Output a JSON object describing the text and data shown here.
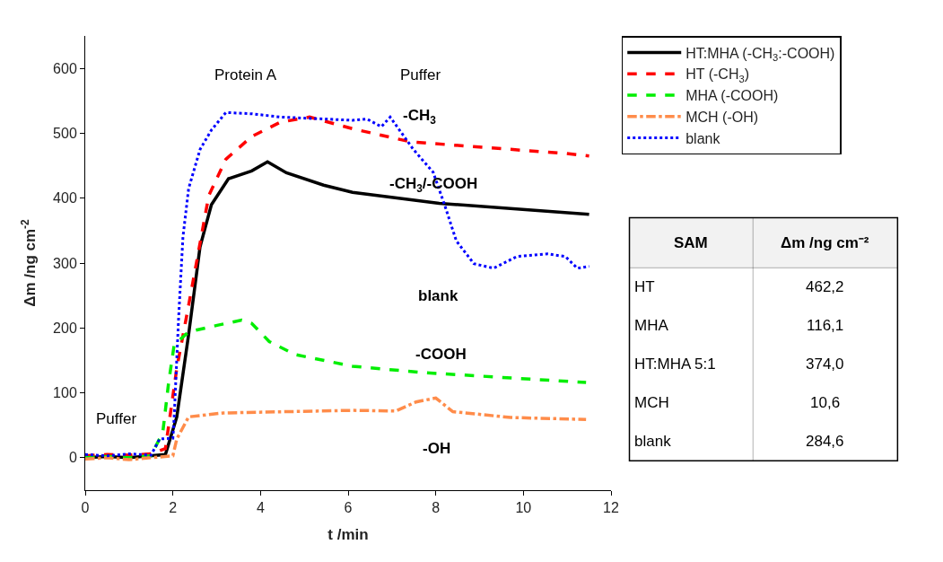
{
  "chart_data": {
    "type": "line",
    "xlabel": "t /min",
    "ylabel": "Δm /ng cm$^{-2}$",
    "xlim": [
      0,
      12
    ],
    "xticks": [
      0,
      2,
      4,
      6,
      8,
      10,
      12
    ],
    "ylim": [
      -50,
      650
    ],
    "yticks": [
      0,
      100,
      200,
      300,
      400,
      500,
      600
    ],
    "grid": false,
    "legend": "top right",
    "marker": "none",
    "series": [
      {
        "name": "HT:MHA (-CH$_{3}$:-COOH)",
        "color": "#000000",
        "line_style": "solid",
        "x": [
          0,
          0.5,
          1.0,
          1.5,
          1.83,
          2.09,
          2.36,
          2.62,
          2.88,
          3.27,
          3.8,
          4.16,
          4.59,
          5.44,
          5.77,
          6.1,
          8.08,
          11.03,
          11.5
        ],
        "values": [
          0,
          2,
          0,
          3,
          5,
          63,
          190,
          325,
          390,
          430,
          442,
          456,
          439,
          420,
          415,
          409,
          392,
          377,
          375
        ]
      },
      {
        "name": "HT (-CH$_{3}$)",
        "color": "#ff0000",
        "line_style": "dashed",
        "x": [
          0,
          0.5,
          1.0,
          1.5,
          1.83,
          2.09,
          2.36,
          2.62,
          2.82,
          3.21,
          3.8,
          4.45,
          5.12,
          6.1,
          6.43,
          7.41,
          8.73,
          10.96,
          11.5
        ],
        "values": [
          3,
          5,
          4,
          6,
          14,
          138,
          235,
          334,
          404,
          460,
          495,
          517,
          525,
          507,
          502,
          487,
          480,
          469,
          465
        ]
      },
      {
        "name": "MHA (-COOH)",
        "color": "#00ee00",
        "line_style": "dashed",
        "x": [
          0,
          0.5,
          1.0,
          1.5,
          1.77,
          1.9,
          2.03,
          2.36,
          3.01,
          3.57,
          3.8,
          4.2,
          4.79,
          6.1,
          7.74,
          9.71,
          11.43
        ],
        "values": [
          0,
          2,
          0,
          3,
          39,
          114,
          174,
          194,
          204,
          212,
          207,
          179,
          159,
          141,
          131,
          123,
          116
        ]
      },
      {
        "name": "MCH (-OH)",
        "color": "#ff8c4a",
        "line_style": "dashdot",
        "x": [
          0,
          0.5,
          1.0,
          1.5,
          2.0,
          2.09,
          2.36,
          3.15,
          6.1,
          7.09,
          7.55,
          8.0,
          8.39,
          9.71,
          11.43
        ],
        "values": [
          -2,
          0,
          -3,
          0,
          3,
          29,
          63,
          69,
          73,
          72,
          86,
          92,
          71,
          62,
          59
        ]
      },
      {
        "name": "blank",
        "color": "#0000ff",
        "line_style": "dotted",
        "x": [
          0,
          0.5,
          1.0,
          1.5,
          1.7,
          2.0,
          2.03,
          2.13,
          2.23,
          2.36,
          2.62,
          2.88,
          3.21,
          3.8,
          4.45,
          6.1,
          6.43,
          6.76,
          6.96,
          7.49,
          7.94,
          8.2,
          8.47,
          8.87,
          9.32,
          9.85,
          10.56,
          10.96,
          11.23,
          11.5
        ],
        "values": [
          5,
          3,
          6,
          4,
          29,
          30,
          63,
          214,
          340,
          415,
          475,
          505,
          532,
          530,
          525,
          520,
          522,
          510,
          525,
          475,
          440,
          390,
          334,
          299,
          292,
          310,
          314,
          310,
          292,
          295
        ]
      }
    ],
    "annotations": [
      "Puffer",
      "Protein A",
      "Puffer",
      "-CH$_{3}$",
      "-CH$_{3}$/-COOH",
      "blank",
      "-COOH",
      "-OH",
      "SAM",
      "Δm /ng cm⁻²",
      "HT",
      "462,2",
      "MHA",
      "116,1",
      "HT:MHA 5:1",
      "374,0",
      "MCH",
      "10,6",
      "blank",
      "284,6"
    ]
  }
}
